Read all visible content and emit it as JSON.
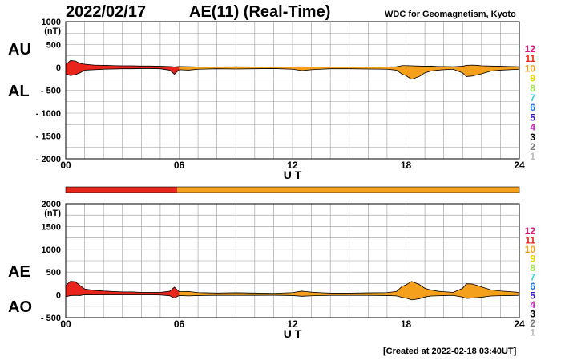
{
  "header": {
    "date": "2022/02/17",
    "index_title": "AE(11) (Real-Time)",
    "source": "WDC for Geomagnetism, Kyoto"
  },
  "footer": {
    "created": "[Created at 2022-02-18 03:40UT]"
  },
  "colors": {
    "red": "#e8251c",
    "orange": "#f5a01d",
    "grid": "#999999",
    "curve": "#000000"
  },
  "levels": [
    {
      "label": "12",
      "color": "#e8157a"
    },
    {
      "label": "11",
      "color": "#e8251c"
    },
    {
      "label": "10",
      "color": "#f5a01d"
    },
    {
      "label": "9",
      "color": "#e8d800"
    },
    {
      "label": "8",
      "color": "#a6e34a"
    },
    {
      "label": "7",
      "color": "#2ad6e6"
    },
    {
      "label": "6",
      "color": "#2176e8"
    },
    {
      "label": "5",
      "color": "#3a1ab5"
    },
    {
      "label": "4",
      "color": "#cc22cc"
    },
    {
      "label": "3",
      "color": "#000000"
    },
    {
      "label": "2",
      "color": "#777777"
    },
    {
      "label": "1",
      "color": "#bbbbbb"
    }
  ],
  "chart_data": [
    {
      "type": "area",
      "panel": "AU/AL",
      "series_labels": [
        "AU",
        "AL"
      ],
      "yunit": "(nT)",
      "ylim": [
        -2000,
        1000
      ],
      "yticks": [
        1000,
        500,
        0,
        -500,
        -1000,
        -1500,
        -2000
      ],
      "ytick_labels": [
        "1000",
        "500",
        "0",
        "- 500",
        "- 1000",
        "- 1500",
        "- 2000"
      ],
      "xlim": [
        0,
        24
      ],
      "xticks": [
        0,
        6,
        12,
        18,
        24
      ],
      "xtick_labels": [
        "00",
        "06",
        "12",
        "18",
        "24"
      ],
      "xlabel": "U T",
      "grid": true,
      "x": [
        0,
        0.25,
        0.5,
        0.75,
        1,
        1.5,
        2,
        2.5,
        3,
        3.5,
        4,
        4.5,
        5,
        5.5,
        5.75,
        6,
        6.5,
        7,
        8,
        9,
        10,
        11,
        12,
        12.5,
        13,
        13.5,
        14,
        15,
        16,
        17,
        17.5,
        17.8,
        18,
        18.3,
        18.7,
        19,
        19.3,
        19.7,
        20,
        20.5,
        21,
        21.2,
        21.5,
        21.8,
        22,
        22.5,
        23,
        23.5,
        24
      ],
      "au": [
        60,
        150,
        140,
        90,
        70,
        50,
        45,
        40,
        35,
        35,
        30,
        30,
        25,
        20,
        10,
        20,
        15,
        10,
        10,
        12,
        10,
        8,
        10,
        12,
        10,
        8,
        8,
        8,
        10,
        10,
        15,
        40,
        40,
        35,
        30,
        25,
        30,
        20,
        20,
        15,
        25,
        45,
        50,
        45,
        35,
        30,
        25,
        20,
        15
      ],
      "al": [
        -140,
        -180,
        -160,
        -120,
        -60,
        -50,
        -40,
        -35,
        -30,
        -30,
        -25,
        -25,
        -30,
        -60,
        -150,
        -50,
        -60,
        -40,
        -30,
        -35,
        -30,
        -25,
        -40,
        -70,
        -50,
        -40,
        -30,
        -30,
        -35,
        -40,
        -60,
        -150,
        -180,
        -260,
        -200,
        -120,
        -80,
        -60,
        -50,
        -40,
        -120,
        -200,
        -190,
        -160,
        -140,
        -80,
        -60,
        -50,
        -40
      ],
      "band_levels": [
        {
          "from": 0,
          "to": 5.9,
          "color": "#e8251c"
        },
        {
          "from": 5.9,
          "to": 24,
          "color": "#f5a01d"
        }
      ]
    },
    {
      "type": "area",
      "panel": "AE/AO",
      "series_labels": [
        "AE",
        "AO"
      ],
      "yunit": "(nT)",
      "ylim": [
        -500,
        2000
      ],
      "yticks": [
        2000,
        1500,
        1000,
        500,
        0,
        -500
      ],
      "ytick_labels": [
        "2000",
        "1500",
        "1000",
        "500",
        "0",
        "- 500"
      ],
      "xlim": [
        0,
        24
      ],
      "xticks": [
        0,
        6,
        12,
        18,
        24
      ],
      "xtick_labels": [
        "00",
        "06",
        "12",
        "18",
        "24"
      ],
      "xlabel": "U T",
      "grid": true,
      "x": [
        0,
        0.25,
        0.5,
        0.75,
        1,
        1.5,
        2,
        2.5,
        3,
        3.5,
        4,
        4.5,
        5,
        5.5,
        5.75,
        6,
        6.5,
        7,
        8,
        9,
        10,
        11,
        12,
        12.5,
        13,
        13.5,
        14,
        15,
        16,
        17,
        17.5,
        17.8,
        18,
        18.3,
        18.7,
        19,
        19.3,
        19.7,
        20,
        20.5,
        21,
        21.2,
        21.5,
        21.8,
        22,
        22.5,
        23,
        23.5,
        24
      ],
      "ae": [
        200,
        300,
        290,
        210,
        130,
        100,
        85,
        75,
        65,
        65,
        55,
        55,
        55,
        80,
        170,
        70,
        75,
        50,
        40,
        47,
        40,
        33,
        50,
        82,
        60,
        48,
        38,
        38,
        45,
        50,
        75,
        190,
        220,
        295,
        230,
        145,
        110,
        80,
        70,
        55,
        145,
        245,
        240,
        205,
        175,
        110,
        85,
        70,
        55
      ],
      "ao": [
        -40,
        -15,
        -10,
        -15,
        5,
        0,
        2,
        2,
        2,
        2,
        2,
        2,
        -2,
        -20,
        -70,
        -15,
        -22,
        -15,
        -10,
        -12,
        -10,
        -8,
        -15,
        -30,
        -20,
        -16,
        -11,
        -11,
        -12,
        -15,
        -22,
        -55,
        -70,
        -110,
        -85,
        -48,
        -25,
        -20,
        -15,
        -12,
        -48,
        -78,
        -70,
        -58,
        -52,
        -25,
        -18,
        -15,
        -12
      ],
      "level_colors": [
        {
          "from": 0,
          "to": 5.9,
          "color": "#e8251c"
        },
        {
          "from": 5.9,
          "to": 24,
          "color": "#f5a01d"
        }
      ]
    }
  ]
}
